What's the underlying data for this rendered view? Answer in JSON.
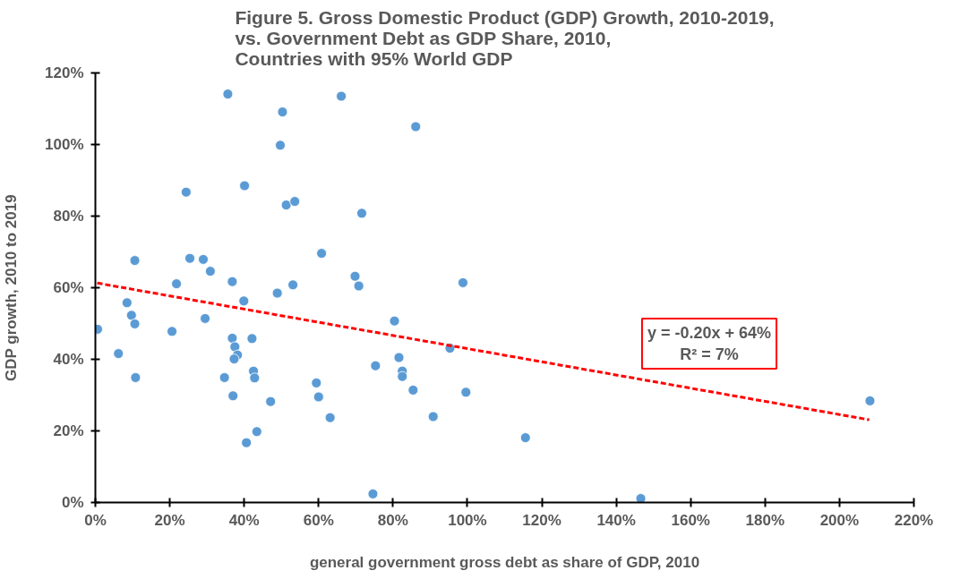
{
  "chart_data": {
    "type": "scatter",
    "title": "Figure 5. Gross Domestic Product (GDP) Growth, 2010-2019,\nvs. Government Debt as GDP Share, 2010,\nCountries with 95% World GDP",
    "xlabel": "general government gross debt as share of GDP, 2010",
    "ylabel": "GDP growth, 2010 to 2019",
    "series": [
      {
        "color": "#5b9bd5",
        "marker": "circle",
        "x": [
          0.6,
          6.2,
          10.6,
          8.5,
          9.7,
          10.6,
          10.8,
          24.4,
          25.4,
          21.8,
          20.6,
          29,
          30.9,
          29.5,
          35.6,
          40.1,
          36.8,
          39.9,
          36.8,
          37.5,
          38.2,
          37.3,
          34.7,
          37,
          42.1,
          42.5,
          42.8,
          47.1,
          43.4,
          40.6,
          48.9,
          50.3,
          49.7,
          66.1,
          86.1,
          51.3,
          53.6,
          71.6,
          60.8,
          69.8,
          70.8,
          98.8,
          53.1,
          80.4,
          95.3,
          75.3,
          81.6,
          82.5,
          82.5,
          85.4,
          99.6,
          59.4,
          60,
          63.1,
          90.8,
          74.6,
          115.6,
          146.6,
          208.2
        ],
        "values": [
          48.4,
          41.6,
          67.6,
          55.8,
          52.3,
          49.9,
          34.9,
          86.7,
          68.2,
          61.1,
          47.8,
          67.9,
          64.6,
          51.4,
          114.1,
          88.5,
          61.7,
          56.3,
          45.9,
          43.5,
          41.2,
          40.1,
          34.9,
          29.8,
          45.8,
          36.7,
          34.8,
          28.2,
          19.8,
          16.7,
          58.5,
          109.1,
          99.8,
          113.5,
          105,
          83.1,
          84.1,
          80.8,
          69.6,
          63.2,
          60.5,
          61.4,
          60.8,
          50.7,
          43.1,
          38.2,
          40.5,
          36.7,
          35.2,
          31.4,
          30.8,
          33.4,
          29.5,
          23.7,
          24,
          2.4,
          18.1,
          1.1,
          28.4
        ]
      },
      {
        "type": "line",
        "color": "#ff0000",
        "line_style": "dashed",
        "marker": "none",
        "x": [
          0.5,
          208
        ],
        "values": [
          61.3,
          23.1
        ]
      }
    ],
    "annotations": [
      "y = -0.20x + 64%",
      "R² = 7%"
    ],
    "xlim": [
      0,
      220
    ],
    "ylim": [
      0,
      120
    ],
    "xticks": [
      {
        "value": 0,
        "label": "0%"
      },
      {
        "value": 20,
        "label": "20%"
      },
      {
        "value": 40,
        "label": "40%"
      },
      {
        "value": 60,
        "label": "60%"
      },
      {
        "value": 80,
        "label": "80%"
      },
      {
        "value": 100,
        "label": "100%"
      },
      {
        "value": 120,
        "label": "120%"
      },
      {
        "value": 140,
        "label": "140%"
      },
      {
        "value": 160,
        "label": "160%"
      },
      {
        "value": 180,
        "label": "180%"
      },
      {
        "value": 200,
        "label": "200%"
      },
      {
        "value": 220,
        "label": "220%"
      }
    ],
    "yticks": [
      {
        "value": 0,
        "label": "0%"
      },
      {
        "value": 20,
        "label": "20%"
      },
      {
        "value": 40,
        "label": "40%"
      },
      {
        "value": 60,
        "label": "60%"
      },
      {
        "value": 80,
        "label": "80%"
      },
      {
        "value": 100,
        "label": "100%"
      },
      {
        "value": 120,
        "label": "120%"
      }
    ],
    "grid": false
  }
}
